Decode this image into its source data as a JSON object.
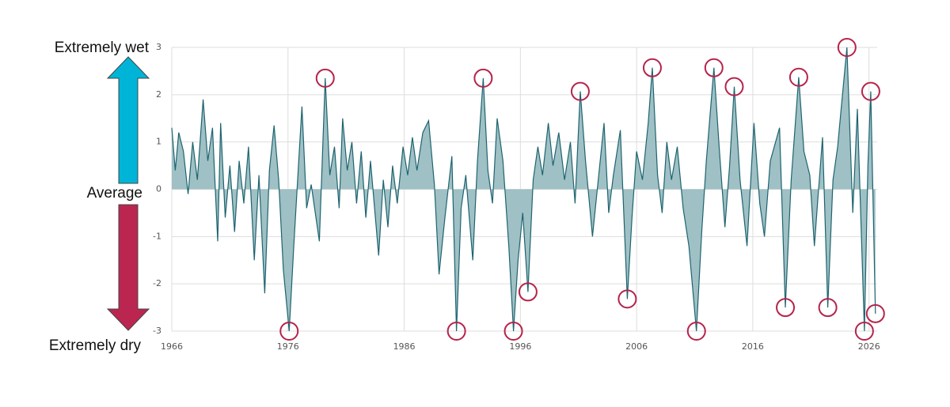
{
  "chart_data": {
    "type": "area",
    "labels": {
      "top": "Extremely wet",
      "middle": "Average",
      "bottom": "Extremely dry"
    },
    "x": [
      1966.0,
      1966.3,
      1966.6,
      1967.0,
      1967.4,
      1967.8,
      1968.2,
      1968.7,
      1969.1,
      1969.5,
      1969.95,
      1970.2,
      1970.6,
      1971.0,
      1971.4,
      1971.8,
      1972.2,
      1972.6,
      1973.1,
      1973.5,
      1974.0,
      1974.4,
      1974.8,
      1975.2,
      1975.6,
      1976.1,
      1976.5,
      1976.9,
      1977.2,
      1977.6,
      1978.0,
      1978.7,
      1979.2,
      1979.6,
      1980.0,
      1980.4,
      1980.7,
      1981.1,
      1981.5,
      1981.9,
      1982.3,
      1982.7,
      1983.1,
      1983.8,
      1984.2,
      1984.6,
      1985.0,
      1985.4,
      1985.9,
      1986.3,
      1986.7,
      1987.1,
      1987.6,
      1988.1,
      1988.6,
      1989.0,
      1989.5,
      1990.1,
      1990.5,
      1990.9,
      1991.3,
      1991.9,
      1992.3,
      1992.8,
      1993.2,
      1993.6,
      1994.0,
      1994.5,
      1995.0,
      1995.4,
      1995.8,
      1996.2,
      1996.65,
      1997.1,
      1997.5,
      1997.9,
      1998.4,
      1998.8,
      1999.3,
      1999.8,
      2000.3,
      2000.7,
      2001.15,
      2001.6,
      2002.2,
      2002.7,
      2003.2,
      2003.6,
      2004.0,
      2004.6,
      2005.2,
      2005.6,
      2006.0,
      2006.5,
      2007.0,
      2007.35,
      2007.8,
      2008.2,
      2008.6,
      2009.0,
      2009.5,
      2010.0,
      2010.5,
      2011.15,
      2011.6,
      2012.0,
      2012.65,
      2013.1,
      2013.6,
      2014.0,
      2014.4,
      2014.9,
      2015.5,
      2016.1,
      2016.6,
      2017.0,
      2017.5,
      2018.3,
      2018.8,
      2019.3,
      2019.95,
      2020.4,
      2020.9,
      2021.3,
      2021.6,
      2022.0,
      2022.45,
      2022.9,
      2023.3,
      2023.6,
      2024.1,
      2024.6,
      2025.0,
      2025.6,
      2025.9,
      2026.15,
      2026.55
    ],
    "series": [
      {
        "color": "#1e6470",
        "fill": "#9fc0c4",
        "values": [
          1.3,
          0.4,
          1.2,
          0.8,
          -0.1,
          1.0,
          0.2,
          1.9,
          0.6,
          1.3,
          -1.1,
          1.4,
          -0.6,
          0.5,
          -0.9,
          0.6,
          -0.3,
          0.9,
          -1.5,
          0.3,
          -2.2,
          0.4,
          1.35,
          0.2,
          -1.7,
          -3,
          -1.2,
          0.5,
          1.75,
          -0.4,
          0.1,
          -1.1,
          2.35,
          0.3,
          0.9,
          -0.4,
          1.5,
          0.4,
          1.0,
          -0.3,
          0.8,
          -0.6,
          0.6,
          -1.4,
          0.2,
          -0.8,
          0.5,
          -0.3,
          0.9,
          0.3,
          1.1,
          0.4,
          1.2,
          1.45,
          0.1,
          -1.8,
          -0.6,
          0.7,
          -3,
          -0.4,
          0.3,
          -1.5,
          0.6,
          2.35,
          0.4,
          -0.3,
          1.5,
          0.6,
          -1.2,
          -3,
          -1.5,
          -0.5,
          -2.17,
          0.2,
          0.9,
          0.3,
          1.4,
          0.5,
          1.2,
          0.2,
          1.0,
          -0.3,
          2.07,
          0.6,
          -1.0,
          0.2,
          1.4,
          -0.5,
          0.3,
          1.25,
          -2.32,
          -0.6,
          0.8,
          0.2,
          1.4,
          2.57,
          0.3,
          -0.5,
          1.0,
          0.2,
          0.9,
          -0.4,
          -1.2,
          -3,
          -0.9,
          0.6,
          2.57,
          0.9,
          -0.8,
          0.5,
          2.17,
          0.2,
          -1.2,
          1.4,
          -0.3,
          -1.0,
          0.6,
          1.3,
          -2.5,
          0.2,
          2.37,
          0.8,
          0.3,
          -1.2,
          -0.2,
          1.1,
          -2.5,
          0.2,
          0.9,
          1.7,
          3,
          -0.5,
          1.7,
          -3,
          0.5,
          2.07,
          -2.63
        ]
      }
    ],
    "highlights": [
      {
        "x": 1976.1,
        "y": -3
      },
      {
        "x": 1979.2,
        "y": 2.35
      },
      {
        "x": 1990.5,
        "y": -3
      },
      {
        "x": 1992.8,
        "y": 2.35
      },
      {
        "x": 1995.4,
        "y": -3
      },
      {
        "x": 1996.65,
        "y": -2.17
      },
      {
        "x": 2001.15,
        "y": 2.07
      },
      {
        "x": 2005.2,
        "y": -2.32
      },
      {
        "x": 2007.35,
        "y": 2.57
      },
      {
        "x": 2011.15,
        "y": -3
      },
      {
        "x": 2012.65,
        "y": 2.57
      },
      {
        "x": 2014.4,
        "y": 2.17
      },
      {
        "x": 2018.8,
        "y": -2.5
      },
      {
        "x": 2019.95,
        "y": 2.37
      },
      {
        "x": 2022.45,
        "y": -2.5
      },
      {
        "x": 2024.1,
        "y": 3
      },
      {
        "x": 2025.6,
        "y": -3
      },
      {
        "x": 2026.15,
        "y": 2.07
      },
      {
        "x": 2026.55,
        "y": -2.63
      }
    ],
    "highlight_color": "#b5234a",
    "xlim": [
      1966,
      2026.7
    ],
    "xticks": [
      1966,
      1976,
      1986,
      1996,
      2006,
      2016,
      2026
    ],
    "ylim": [
      -3,
      3
    ],
    "yticks": [
      -3,
      -2,
      -1,
      0,
      1,
      2,
      3
    ],
    "grid": true
  }
}
